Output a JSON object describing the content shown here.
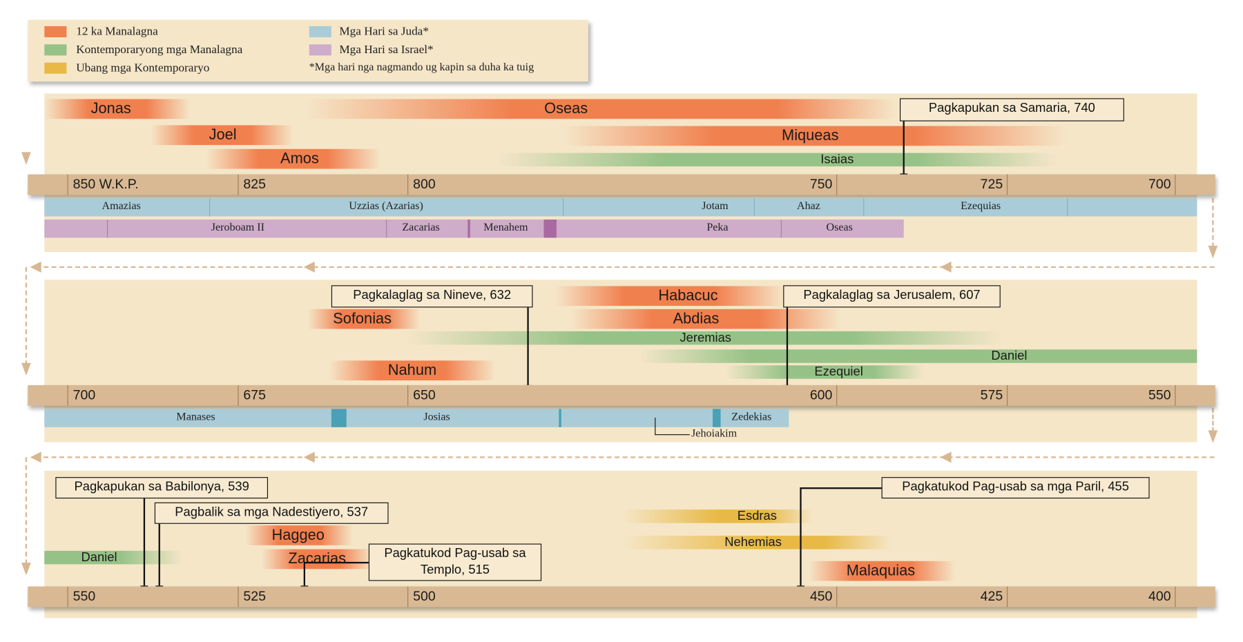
{
  "legend": {
    "items": [
      {
        "label": "12 ka Manalagna",
        "color": "#f1804f"
      },
      {
        "label": "Kontemporaryong mga Manalagna",
        "color": "#97c287"
      },
      {
        "label": "Ubang mga Kontemporaryo",
        "color": "#e8b946"
      },
      {
        "label": "Mga Hari sa Juda*",
        "color": "#a9ccd8"
      },
      {
        "label": "Mga Hari sa Israel*",
        "color": "#cfacca"
      }
    ],
    "footnote": "*Mga hari nga nagmando ug kapin sa duha ka tuig"
  },
  "panels": [
    {
      "bars": [
        "Jonas",
        "Oseas",
        "Joel",
        "Miqueas",
        "Amos",
        "Isaias"
      ],
      "callouts": [
        "Pagkapukan sa Samaria, 740"
      ],
      "axis": [
        "850 W.K.P.",
        "825",
        "800",
        "750",
        "725",
        "700"
      ],
      "judah": [
        "Amazias",
        "Uzzias (Azarias)",
        "Jotam",
        "Ahaz",
        "Ezequias"
      ],
      "israel": [
        "Jeroboam II",
        "Zacarias",
        "Menahem",
        "Peka",
        "Oseas"
      ]
    },
    {
      "bars": [
        "Habacuc",
        "Sofonias",
        "Abdias",
        "Jeremias",
        "Daniel",
        "Nahum",
        "Ezequiel"
      ],
      "callouts": [
        "Pagkalaglag sa Nineve, 632",
        "Pagkalaglag sa Jerusalem, 607"
      ],
      "axis": [
        "700",
        "675",
        "650",
        "600",
        "575",
        "550"
      ],
      "judah": [
        "Manases",
        "Josias",
        "Zedekias",
        "Jehoiakim"
      ]
    },
    {
      "bars": [
        "Haggeo",
        "Daniel",
        "Zacarias",
        "Esdras",
        "Nehemias",
        "Malaquias"
      ],
      "callouts": [
        "Pagkapukan sa Babilonya, 539",
        "Pagbalik sa mga Nadestiyero, 537",
        "Pagkatukod Pag-usab sa",
        "Templo, 515",
        "Pagkatukod Pag-usab sa mga Paril, 455"
      ],
      "axis": [
        "550",
        "525",
        "500",
        "450",
        "425",
        "400"
      ]
    }
  ]
}
